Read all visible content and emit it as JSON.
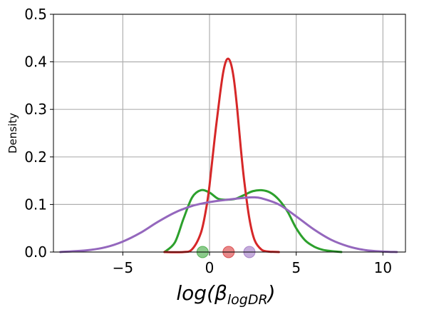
{
  "chart_data": {
    "type": "line",
    "xlabel_base": "log(β",
    "xlabel_sub": "logDR",
    "xlabel_close": ")",
    "ylabel": "Density",
    "xlim": [
      -9,
      11.3
    ],
    "ylim": [
      0,
      0.5
    ],
    "x_ticks": [
      -5,
      0,
      5,
      10
    ],
    "x_tick_labels": [
      "−5",
      "0",
      "5",
      "10"
    ],
    "y_ticks": [
      0.0,
      0.1,
      0.2,
      0.3,
      0.4,
      0.5
    ],
    "y_tick_labels": [
      "0.0",
      "0.1",
      "0.2",
      "0.3",
      "0.4",
      "0.5"
    ],
    "grid": true,
    "series": [
      {
        "color": "#2ca02c",
        "x": [
          -2.6,
          -2.0,
          -1.5,
          -1.0,
          -0.5,
          0.0,
          0.5,
          1.0,
          1.5,
          2.0,
          2.5,
          3.0,
          3.5,
          4.0,
          4.5,
          5.0,
          5.5,
          6.0,
          6.5,
          7.0,
          7.6
        ],
        "y": [
          0.0,
          0.02,
          0.07,
          0.115,
          0.13,
          0.125,
          0.112,
          0.11,
          0.112,
          0.12,
          0.128,
          0.13,
          0.125,
          0.11,
          0.085,
          0.05,
          0.025,
          0.012,
          0.005,
          0.002,
          0.0
        ],
        "marker_x": -0.4
      },
      {
        "color": "#d62728",
        "x": [
          -2.6,
          -1.5,
          -1.0,
          -0.5,
          -0.2,
          0.0,
          0.3,
          0.6,
          0.8,
          1.0,
          1.2,
          1.4,
          1.6,
          1.8,
          2.0,
          2.3,
          2.6,
          3.0,
          3.4,
          4.0
        ],
        "y": [
          0.0,
          0.0,
          0.006,
          0.04,
          0.09,
          0.14,
          0.24,
          0.33,
          0.38,
          0.405,
          0.4,
          0.365,
          0.3,
          0.22,
          0.15,
          0.07,
          0.025,
          0.005,
          0.001,
          0.0
        ],
        "marker_x": 1.1
      },
      {
        "color": "#9467bd",
        "x": [
          -8.6,
          -7.0,
          -6.0,
          -5.0,
          -4.0,
          -3.0,
          -2.0,
          -1.0,
          0.0,
          1.0,
          2.0,
          2.5,
          3.0,
          4.0,
          5.0,
          6.0,
          7.0,
          8.0,
          9.0,
          10.0,
          10.8
        ],
        "y": [
          0.0,
          0.004,
          0.01,
          0.022,
          0.04,
          0.063,
          0.083,
          0.097,
          0.105,
          0.11,
          0.114,
          0.115,
          0.113,
          0.1,
          0.075,
          0.048,
          0.026,
          0.012,
          0.004,
          0.001,
          0.0
        ],
        "marker_x": 2.3
      }
    ]
  }
}
